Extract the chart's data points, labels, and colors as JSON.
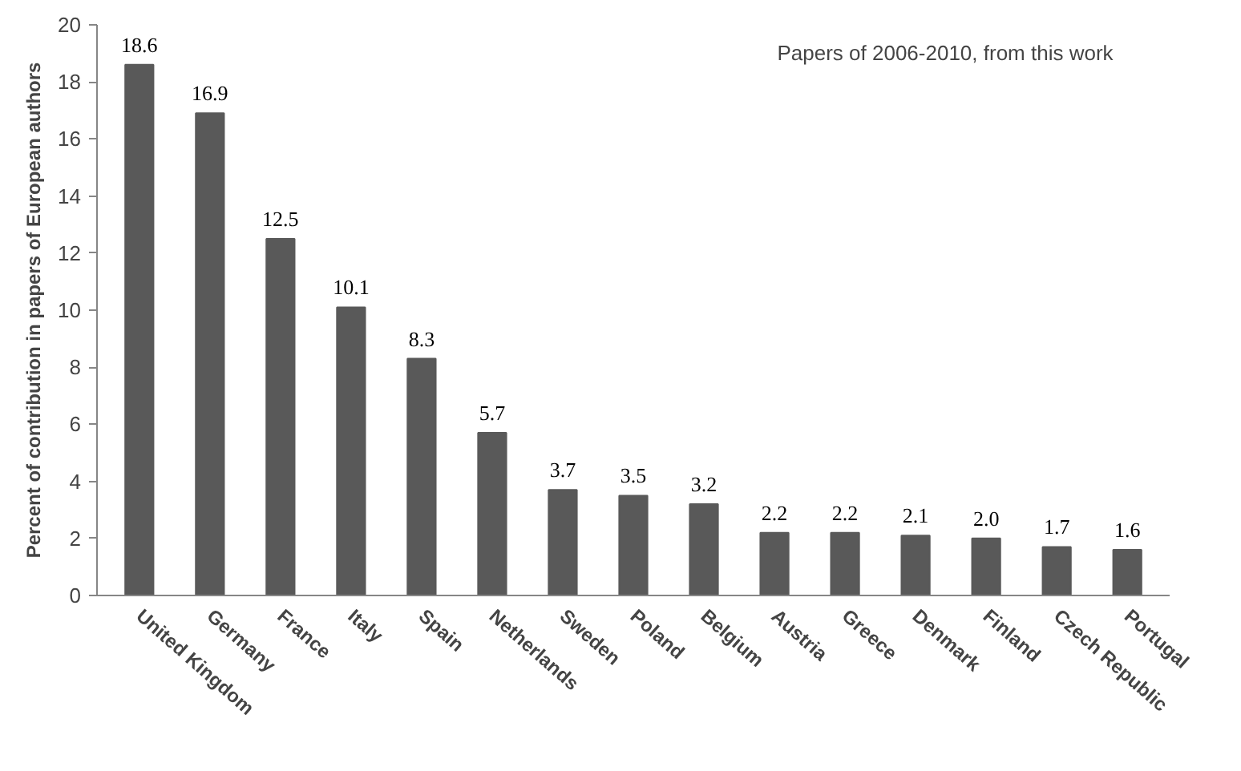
{
  "chart_data": {
    "type": "bar",
    "ylabel": "Percent of contribution in papers of European authors",
    "categories": [
      "United Kingdom",
      "Germany",
      "France",
      "Italy",
      "Spain",
      "Netherlands",
      "Sweden",
      "Poland",
      "Belgium",
      "Austria",
      "Greece",
      "Denmark",
      "Finland",
      "Czech Republic",
      "Portugal"
    ],
    "values": [
      18.6,
      16.9,
      12.5,
      10.1,
      8.3,
      5.7,
      3.7,
      3.5,
      3.2,
      2.2,
      2.2,
      2.1,
      2.0,
      1.7,
      1.6
    ],
    "value_labels": [
      "18.6",
      "16.9",
      "12.5",
      "10.1",
      "8.3",
      "5.7",
      "3.7",
      "3.5",
      "3.2",
      "2.2",
      "2.2",
      "2.1",
      "2.0",
      "1.7",
      "1.6"
    ],
    "color": "#595959",
    "ylim": [
      0,
      20
    ],
    "yticks": [
      0,
      2,
      4,
      6,
      8,
      10,
      12,
      14,
      16,
      18,
      20
    ],
    "grid": false,
    "annotations": [
      "Papers of 2006-2010, from this work"
    ]
  }
}
